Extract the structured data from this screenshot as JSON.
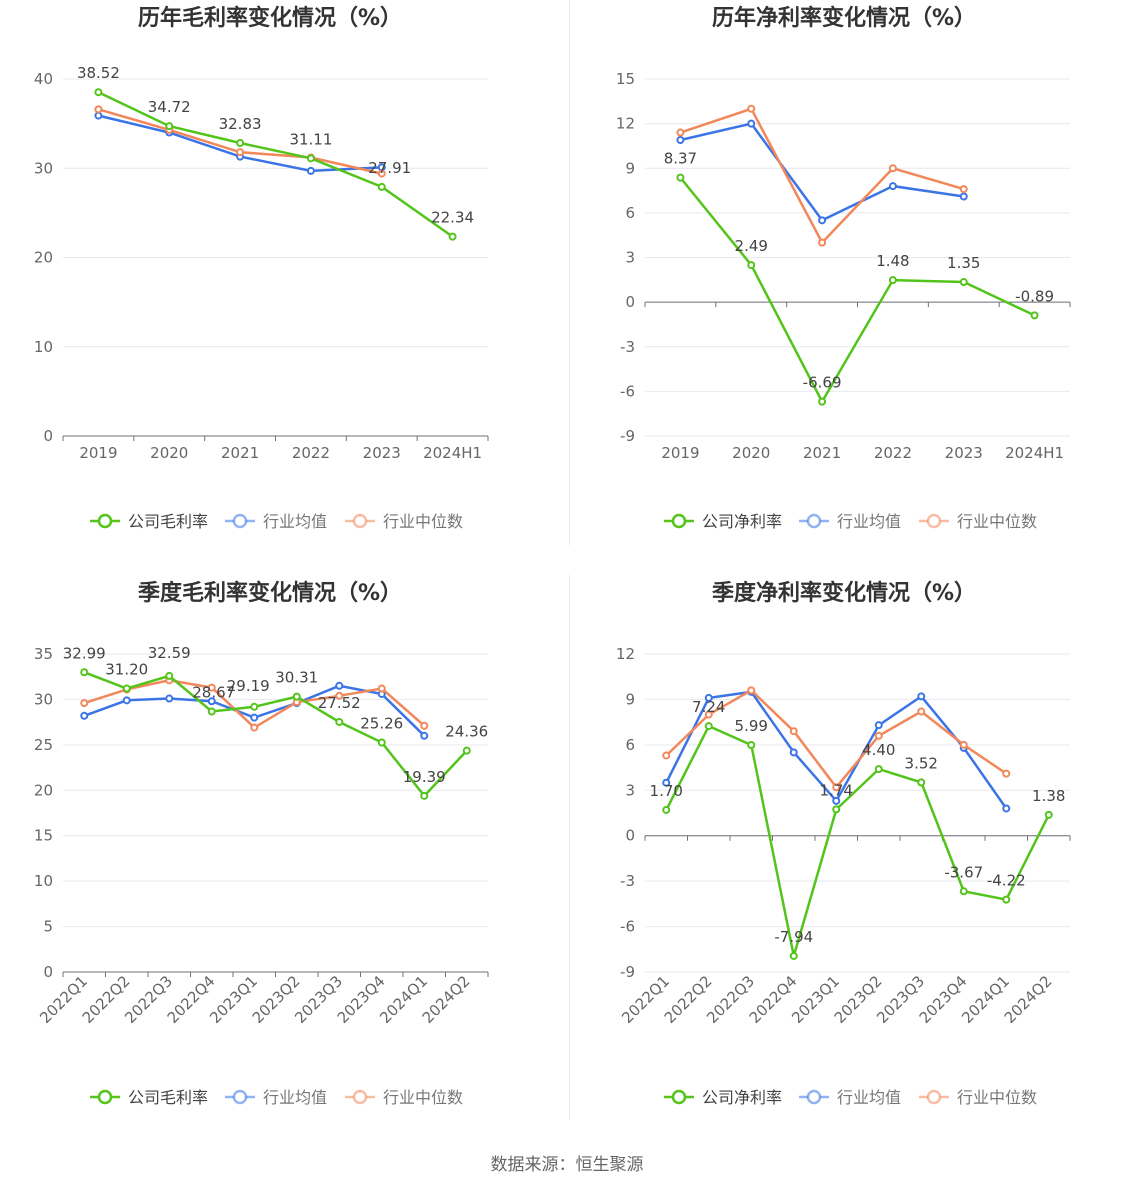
{
  "source": "数据来源：恒生聚源",
  "colors": {
    "company": "#52c41a",
    "avg": "#3b74e6",
    "median": "#f2875a"
  },
  "chart_data": [
    {
      "type": "line",
      "title": "历年毛利率变化情况（%）",
      "categories": [
        "2019",
        "2020",
        "2021",
        "2022",
        "2023",
        "2024H1"
      ],
      "ylim": [
        0,
        40
      ],
      "yticks": [
        0,
        10,
        20,
        30,
        40
      ],
      "grid": true,
      "legend_position": "bottom",
      "series": [
        {
          "name": "公司毛利率",
          "key": "company",
          "values": [
            38.52,
            34.72,
            32.83,
            31.11,
            27.91,
            22.34
          ],
          "labels": [
            "38.52",
            "34.72",
            "32.83",
            "31.11",
            "27.91",
            "22.34"
          ]
        },
        {
          "name": "行业均值",
          "key": "avg",
          "values": [
            35.9,
            34.0,
            31.3,
            29.7,
            30.1,
            null
          ]
        },
        {
          "name": "行业中位数",
          "key": "median",
          "values": [
            36.6,
            34.3,
            31.8,
            31.2,
            29.4,
            null
          ]
        }
      ]
    },
    {
      "type": "line",
      "title": "历年净利率变化情况（%）",
      "categories": [
        "2019",
        "2020",
        "2021",
        "2022",
        "2023",
        "2024H1"
      ],
      "ylim": [
        -9,
        15
      ],
      "yticks": [
        -9,
        -6,
        -3,
        0,
        3,
        6,
        9,
        12,
        15
      ],
      "grid": true,
      "legend_position": "bottom",
      "series": [
        {
          "name": "公司净利率",
          "key": "company",
          "values": [
            8.37,
            2.49,
            -6.69,
            1.48,
            1.35,
            -0.89
          ],
          "labels": [
            "8.37",
            "2.49",
            "-6.69",
            "1.48",
            "1.35",
            "-0.89"
          ]
        },
        {
          "name": "行业均值",
          "key": "avg",
          "values": [
            10.9,
            12.0,
            5.5,
            7.8,
            7.1,
            null
          ]
        },
        {
          "name": "行业中位数",
          "key": "median",
          "values": [
            11.4,
            13.0,
            4.0,
            9.0,
            7.6,
            null
          ]
        }
      ]
    },
    {
      "type": "line",
      "title": "季度毛利率变化情况（%）",
      "categories": [
        "2022Q1",
        "2022Q2",
        "2022Q3",
        "2022Q4",
        "2023Q1",
        "2023Q2",
        "2023Q3",
        "2023Q4",
        "2024Q1",
        "2024Q2"
      ],
      "ylim": [
        0,
        35
      ],
      "yticks": [
        0,
        5,
        10,
        15,
        20,
        25,
        30,
        35
      ],
      "grid": true,
      "legend_position": "bottom",
      "series": [
        {
          "name": "公司毛利率",
          "key": "company",
          "values": [
            32.99,
            31.2,
            32.59,
            28.67,
            29.19,
            30.31,
            27.52,
            25.26,
            19.39,
            24.36
          ],
          "labels": [
            "32.99",
            "31.20",
            "32.59",
            "28.67",
            "29.19",
            "30.31",
            "27.52",
            "25.26",
            "19.39",
            "24.36"
          ]
        },
        {
          "name": "行业均值",
          "key": "avg",
          "values": [
            28.2,
            29.9,
            30.1,
            29.8,
            28.0,
            29.6,
            31.5,
            30.6,
            26.0,
            null
          ]
        },
        {
          "name": "行业中位数",
          "key": "median",
          "values": [
            29.6,
            31.1,
            32.1,
            31.3,
            26.9,
            29.7,
            30.4,
            31.2,
            27.1,
            null
          ]
        }
      ]
    },
    {
      "type": "line",
      "title": "季度净利率变化情况（%）",
      "categories": [
        "2022Q1",
        "2022Q2",
        "2022Q3",
        "2022Q4",
        "2023Q1",
        "2023Q2",
        "2023Q3",
        "2023Q4",
        "2024Q1",
        "2024Q2"
      ],
      "ylim": [
        -9,
        12
      ],
      "yticks": [
        -9,
        -6,
        -3,
        0,
        3,
        6,
        9,
        12
      ],
      "grid": true,
      "legend_position": "bottom",
      "series": [
        {
          "name": "公司净利率",
          "key": "company",
          "values": [
            1.7,
            7.24,
            5.99,
            -7.94,
            1.74,
            4.4,
            3.52,
            -3.67,
            -4.22,
            1.38
          ],
          "labels": [
            "1.70",
            "7.24",
            "5.99",
            "-7.94",
            "1.74",
            "4.40",
            "3.52",
            "-3.67",
            "-4.22",
            "1.38"
          ]
        },
        {
          "name": "行业均值",
          "key": "avg",
          "values": [
            3.5,
            9.1,
            9.5,
            5.5,
            2.3,
            7.3,
            9.2,
            5.8,
            1.8,
            null
          ]
        },
        {
          "name": "行业中位数",
          "key": "median",
          "values": [
            5.3,
            8.0,
            9.6,
            6.9,
            3.2,
            6.6,
            8.2,
            6.0,
            4.1,
            null
          ]
        }
      ]
    }
  ]
}
